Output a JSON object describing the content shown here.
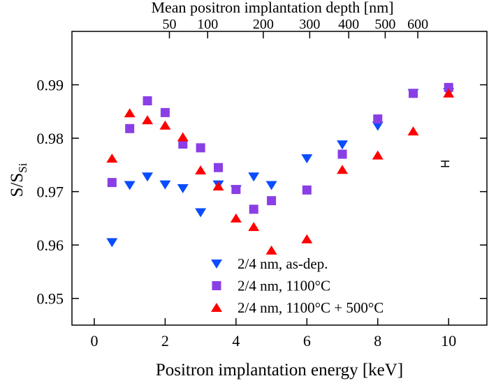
{
  "chart_data": {
    "type": "scatter",
    "xlabel": "Positron implantation energy [keV]",
    "ylabel": "S/S",
    "ylabel_sub": "Si",
    "top_xlabel": "Mean positron implantation depth [nm]",
    "xlim": [
      -0.63,
      11.08
    ],
    "ylim": [
      0.945,
      1.0
    ],
    "xticks": [
      0,
      2,
      4,
      6,
      8,
      10
    ],
    "xtick_labels": [
      "0",
      "2",
      "4",
      "6",
      "8",
      "10"
    ],
    "yticks": [
      0.95,
      0.96,
      0.97,
      0.98,
      0.99
    ],
    "ytick_labels": [
      "0.95",
      "0.96",
      "0.97",
      "0.98",
      "0.99"
    ],
    "top_ticks": [
      {
        "label": "50",
        "energy": 2.12
      },
      {
        "label": "100",
        "energy": 3.2
      },
      {
        "label": "200",
        "energy": 4.77
      },
      {
        "label": "300",
        "energy": 6.08
      },
      {
        "label": "400",
        "energy": 7.18
      },
      {
        "label": "500",
        "energy": 8.21
      },
      {
        "label": "600",
        "energy": 9.13
      }
    ],
    "grid": false,
    "legend_position": "bottom-center",
    "series": [
      {
        "name": "2/4 nm, as-dep.",
        "marker": "triangle-down",
        "color": "#0a4cff",
        "x": [
          0.5,
          1,
          1.5,
          2,
          2.5,
          3,
          3.5,
          4,
          4.5,
          5,
          6,
          7,
          8,
          9,
          10
        ],
        "y": [
          0.9605,
          0.9712,
          0.9728,
          0.9713,
          0.9706,
          0.9661,
          0.9713,
          0.9704,
          0.9728,
          0.9712,
          0.9762,
          0.9788,
          0.9823,
          0.9884,
          0.9886
        ]
      },
      {
        "name": "2/4 nm, 1100°C",
        "marker": "square",
        "color": "#8a3ee6",
        "x": [
          0.5,
          1,
          1.5,
          2,
          2.5,
          3,
          3.5,
          4,
          4.5,
          5,
          6,
          7,
          8,
          9,
          10
        ],
        "y": [
          0.9717,
          0.9818,
          0.987,
          0.9848,
          0.9789,
          0.9782,
          0.9745,
          0.9704,
          0.9667,
          0.9683,
          0.9703,
          0.977,
          0.9836,
          0.9884,
          0.9895
        ]
      },
      {
        "name": "2/4 nm, 1100°C + 500°C",
        "marker": "triangle-up",
        "color": "#ff0000",
        "x": [
          0.5,
          1,
          1.5,
          2,
          2.5,
          3,
          3.5,
          4,
          4.5,
          5,
          6,
          7,
          8,
          9,
          10
        ],
        "y": [
          0.9762,
          0.9847,
          0.9834,
          0.9824,
          0.9802,
          0.974,
          0.971,
          0.965,
          0.9634,
          0.959,
          0.9611,
          0.9741,
          0.9768,
          0.9813,
          0.9884
        ]
      }
    ],
    "error_bar": {
      "x": 9.9,
      "y": 0.9752,
      "err": 0.0005
    }
  }
}
